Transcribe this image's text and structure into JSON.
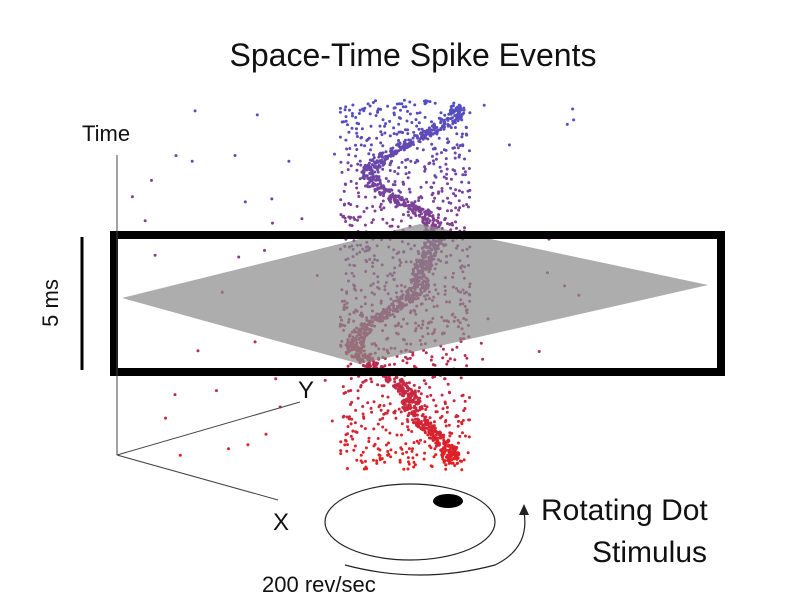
{
  "title": "Space-Time Spike Events",
  "axes": {
    "time": "Time",
    "y": "Y",
    "x": "X"
  },
  "window_label": "5 ms",
  "stimulus": {
    "label_line1": "Rotating Dot",
    "label_line2": "Stimulus",
    "speed": "200 rev/sec"
  }
}
